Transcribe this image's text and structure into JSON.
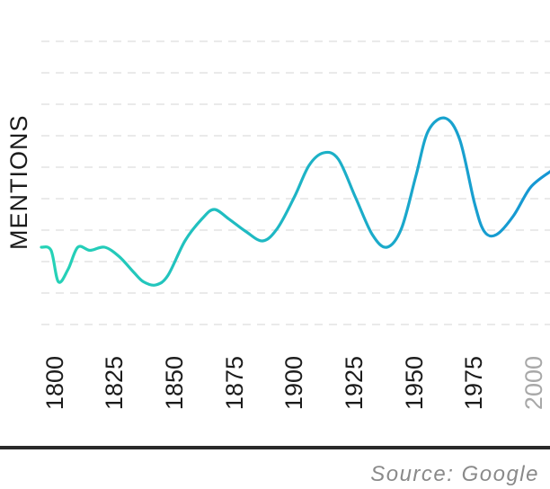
{
  "chart_data": {
    "type": "line",
    "ylabel": "MENTIONS",
    "x_ticks": [
      "1800",
      "1825",
      "1850",
      "1875",
      "1900",
      "1925",
      "1950",
      "1975",
      "2000"
    ],
    "xlim": [
      1796,
      2005
    ],
    "ylim": [
      0,
      10
    ],
    "grid": true,
    "series": [
      {
        "color_start": "#26d3b6",
        "color_end": "#1596d4",
        "points": [
          [
            1796,
            3.0
          ],
          [
            1800,
            2.9
          ],
          [
            1803,
            1.9
          ],
          [
            1807,
            2.3
          ],
          [
            1811,
            3.0
          ],
          [
            1816,
            2.9
          ],
          [
            1822,
            3.0
          ],
          [
            1828,
            2.7
          ],
          [
            1834,
            2.2
          ],
          [
            1838,
            1.9
          ],
          [
            1843,
            1.8
          ],
          [
            1848,
            2.1
          ],
          [
            1855,
            3.2
          ],
          [
            1862,
            3.9
          ],
          [
            1867,
            4.2
          ],
          [
            1873,
            3.9
          ],
          [
            1880,
            3.5
          ],
          [
            1887,
            3.2
          ],
          [
            1893,
            3.6
          ],
          [
            1900,
            4.6
          ],
          [
            1906,
            5.6
          ],
          [
            1912,
            6.0
          ],
          [
            1918,
            5.8
          ],
          [
            1925,
            4.6
          ],
          [
            1932,
            3.4
          ],
          [
            1938,
            3.0
          ],
          [
            1944,
            3.6
          ],
          [
            1950,
            5.3
          ],
          [
            1955,
            6.7
          ],
          [
            1962,
            7.1
          ],
          [
            1968,
            6.4
          ],
          [
            1974,
            4.4
          ],
          [
            1978,
            3.5
          ],
          [
            1983,
            3.4
          ],
          [
            1990,
            4.0
          ],
          [
            1997,
            4.9
          ],
          [
            2005,
            5.4
          ]
        ]
      }
    ]
  },
  "source": "Source: Google"
}
